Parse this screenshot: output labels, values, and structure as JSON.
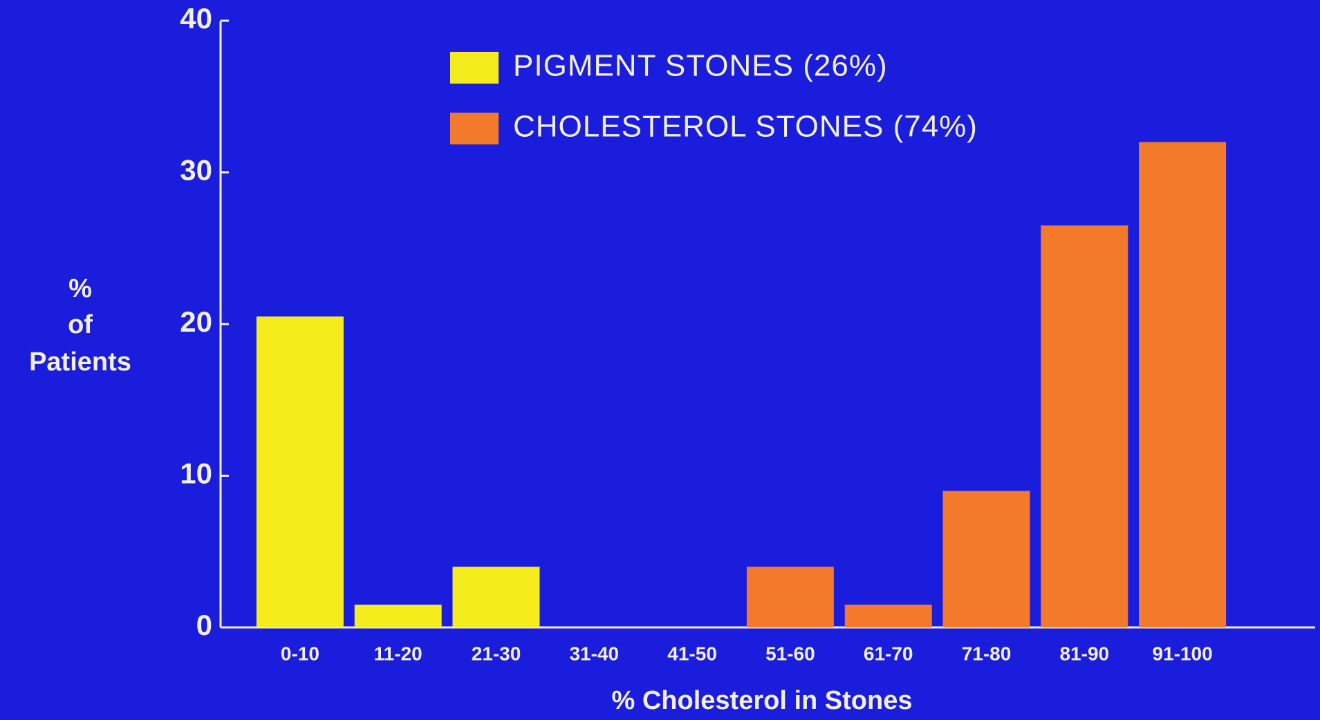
{
  "chart_data": {
    "type": "bar",
    "categories": [
      "0-10",
      "11-20",
      "21-30",
      "31-40",
      "41-50",
      "51-60",
      "61-70",
      "71-80",
      "81-90",
      "91-100"
    ],
    "series": [
      {
        "name": "PIGMENT STONES (26%)",
        "color": "#f4ec1c",
        "values": [
          20.5,
          1.5,
          4,
          0,
          0,
          null,
          null,
          null,
          null,
          null
        ]
      },
      {
        "name": "CHOLESTEROL STONES (74%)",
        "color": "#f27a2a",
        "values": [
          null,
          null,
          null,
          null,
          null,
          4,
          1.5,
          9,
          26.5,
          32
        ]
      }
    ],
    "ylabel": [
      "%",
      "of",
      "Patients"
    ],
    "xlabel": "% Cholesterol in Stones",
    "ylim": [
      0,
      40
    ],
    "yticks": [
      0,
      10,
      20,
      30,
      40
    ],
    "grid": false
  }
}
